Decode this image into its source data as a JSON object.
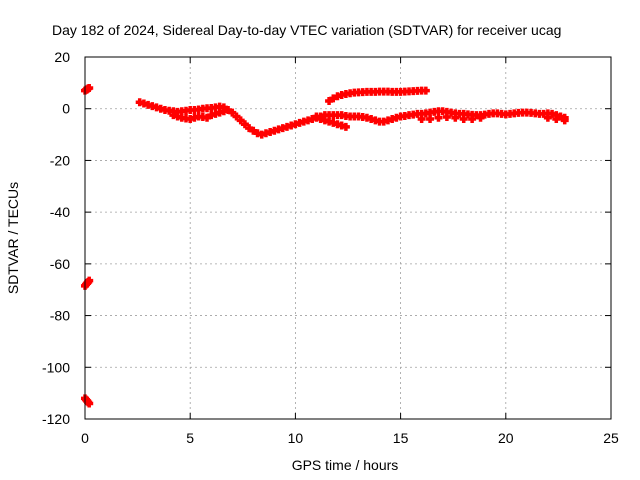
{
  "chart_data": {
    "type": "scatter",
    "title": "Day 182 of 2024, Sidereal Day-to-day VTEC variation (SDTVAR) for receiver ucag",
    "xlabel": "GPS time / hours",
    "ylabel": "SDTVAR / TECUs",
    "xlim": [
      0,
      25
    ],
    "ylim": [
      -120,
      20
    ],
    "xticks": [
      0,
      5,
      10,
      15,
      20,
      25
    ],
    "yticks": [
      -120,
      -100,
      -80,
      -60,
      -40,
      -20,
      0,
      20
    ],
    "xtick_labels": [
      "0",
      "5",
      "10",
      "15",
      "20",
      "25"
    ],
    "ytick_labels": [
      "-120",
      "-100",
      "-80",
      "-60",
      "-40",
      "-20",
      "0",
      "20"
    ],
    "grid": true,
    "marker": "plus",
    "color": "#ff0000",
    "series": [
      {
        "name": "outlier-top",
        "x": [
          0.0,
          0.05,
          0.1,
          0.15,
          0.2
        ],
        "y": [
          7.0,
          7.3,
          7.5,
          7.8,
          8.0
        ]
      },
      {
        "name": "outlier-mid",
        "x": [
          0.0,
          0.05,
          0.1,
          0.15,
          0.2
        ],
        "y": [
          -68.5,
          -68.0,
          -67.5,
          -67.0,
          -66.5
        ]
      },
      {
        "name": "outlier-bottom",
        "x": [
          0.0,
          0.05,
          0.1,
          0.15,
          0.2
        ],
        "y": [
          -112.0,
          -112.5,
          -113.0,
          -113.5,
          -114.0
        ]
      },
      {
        "name": "main-track",
        "x": [
          2.6,
          2.8,
          3.0,
          3.2,
          3.4,
          3.6,
          3.8,
          4.0,
          4.2,
          4.4,
          4.6,
          4.8,
          5.0,
          5.2,
          5.4,
          5.6,
          5.8,
          6.0,
          6.2,
          6.4,
          6.6,
          6.8,
          7.0,
          7.2,
          7.4,
          7.6,
          7.8,
          8.0,
          8.2,
          8.4,
          8.6,
          8.8,
          9.0,
          9.2,
          9.4,
          9.6,
          9.8,
          10.0,
          10.2,
          10.4,
          10.6,
          10.8,
          11.0,
          11.2,
          11.4,
          11.6,
          11.8,
          12.0,
          12.2,
          12.4,
          12.6,
          12.8,
          13.0,
          13.2,
          13.4,
          13.6,
          13.8,
          14.0,
          14.2,
          14.4,
          14.6,
          14.8,
          15.0,
          15.2,
          15.4,
          15.6,
          15.8,
          16.0,
          16.2,
          16.4,
          16.6,
          16.8,
          17.0,
          17.2,
          17.4,
          17.6,
          17.8,
          18.0,
          18.2,
          18.4,
          18.6,
          18.8,
          19.0,
          19.2,
          19.4,
          19.6,
          19.8,
          20.0,
          20.2,
          20.4,
          20.6,
          20.8,
          21.0,
          21.2,
          21.4,
          21.6,
          21.8,
          22.0,
          22.2,
          22.4,
          22.6,
          22.8
        ],
        "y": [
          2.5,
          2.0,
          1.5,
          1.0,
          0.5,
          0.0,
          -0.5,
          -0.8,
          -1.0,
          -1.2,
          -1.0,
          -0.8,
          -0.5,
          -0.5,
          -0.3,
          0.0,
          0.2,
          0.3,
          0.5,
          0.8,
          0.5,
          -0.5,
          -1.5,
          -3.0,
          -4.5,
          -6.0,
          -7.5,
          -8.5,
          -9.5,
          -10.0,
          -9.5,
          -9.0,
          -8.5,
          -8.0,
          -7.5,
          -7.0,
          -6.5,
          -6.0,
          -5.5,
          -5.0,
          -4.5,
          -4.0,
          -3.5,
          -3.0,
          -2.5,
          -2.5,
          -2.5,
          -2.5,
          -2.5,
          -2.8,
          -3.0,
          -3.0,
          -3.0,
          -3.2,
          -3.5,
          -4.0,
          -4.5,
          -5.0,
          -5.0,
          -4.5,
          -4.0,
          -3.5,
          -3.0,
          -2.8,
          -2.5,
          -2.3,
          -2.0,
          -2.0,
          -1.8,
          -1.5,
          -1.2,
          -1.0,
          -1.0,
          -1.2,
          -1.5,
          -1.8,
          -2.0,
          -2.0,
          -2.2,
          -2.4,
          -2.5,
          -2.5,
          -2.3,
          -2.0,
          -1.8,
          -1.8,
          -2.0,
          -2.2,
          -2.0,
          -1.8,
          -1.6,
          -1.5,
          -1.5,
          -1.6,
          -1.8,
          -2.0,
          -2.0,
          -1.8,
          -2.0,
          -2.5,
          -3.0,
          -3.5
        ]
      },
      {
        "name": "lower-band",
        "x": [
          4.2,
          4.4,
          4.6,
          4.8,
          5.0,
          5.2,
          5.4,
          5.6,
          5.8,
          6.0,
          6.2,
          6.4,
          6.6,
          11.0,
          11.2,
          11.4,
          11.6,
          11.8,
          12.0,
          12.2,
          12.4,
          16.0,
          16.4,
          16.8,
          17.2,
          17.6,
          18.0,
          18.4,
          18.8,
          22.0,
          22.4,
          22.8
        ],
        "y": [
          -2.5,
          -3.0,
          -3.5,
          -3.8,
          -4.0,
          -3.5,
          -3.0,
          -3.2,
          -3.5,
          -2.5,
          -2.0,
          -1.5,
          -1.0,
          -3.0,
          -4.0,
          -4.5,
          -5.0,
          -5.5,
          -6.0,
          -6.5,
          -7.0,
          -4.0,
          -4.0,
          -3.5,
          -3.2,
          -3.5,
          -4.0,
          -4.0,
          -3.5,
          -3.5,
          -4.0,
          -4.5
        ]
      },
      {
        "name": "upper-track",
        "x": [
          11.6,
          11.8,
          12.0,
          12.2,
          12.4,
          12.6,
          12.8,
          13.0,
          13.2,
          13.4,
          13.6,
          13.8,
          14.0,
          14.2,
          14.4,
          14.6,
          14.8,
          15.0,
          15.2,
          15.4,
          15.6,
          15.8,
          16.0,
          16.2
        ],
        "y": [
          3.0,
          4.0,
          4.8,
          5.3,
          5.7,
          6.0,
          6.2,
          6.3,
          6.4,
          6.5,
          6.5,
          6.5,
          6.6,
          6.6,
          6.6,
          6.5,
          6.5,
          6.5,
          6.6,
          6.7,
          6.8,
          6.9,
          7.0,
          7.0
        ]
      }
    ]
  }
}
